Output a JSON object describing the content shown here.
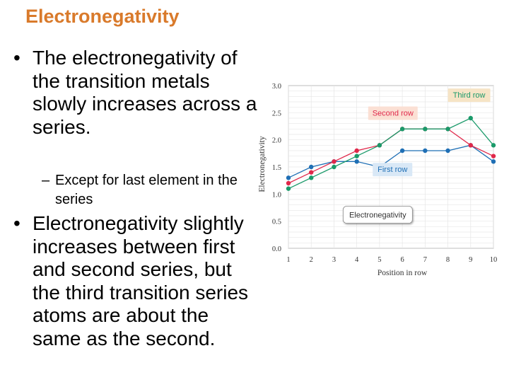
{
  "slide": {
    "title": "Electronegativity",
    "bullets": [
      {
        "text": "The electronegativity of the transition metals slowly increases across a series."
      },
      {
        "text": "Electronegativity slightly increases between first and second series, but the third transition series atoms are about the same as the second."
      }
    ],
    "sub_bullets": [
      {
        "text": "Except for last element in the series"
      }
    ],
    "bullet_glyph": "•",
    "sub_bullet_glyph": "–"
  },
  "chart_data": {
    "type": "line",
    "title": "",
    "xlabel": "Position in row",
    "ylabel": "Electronegativity",
    "x": [
      1,
      2,
      3,
      4,
      5,
      6,
      7,
      8,
      9,
      10
    ],
    "xlim": [
      1,
      10
    ],
    "ylim": [
      0,
      3
    ],
    "yticks": [
      0.0,
      0.5,
      1.0,
      1.5,
      2.0,
      2.5,
      3.0
    ],
    "ytick_labels": [
      "0.0",
      "0.5",
      "1.0",
      "1.5",
      "2.0",
      "2.5",
      "3.0"
    ],
    "grid": true,
    "series": [
      {
        "name": "First row",
        "color": "#1f6fb5",
        "label_bg": "#d9e8f6",
        "values": [
          1.3,
          1.5,
          1.6,
          1.6,
          1.5,
          1.8,
          1.8,
          1.8,
          1.9,
          1.6
        ]
      },
      {
        "name": "Second row",
        "color": "#e0284a",
        "label_bg": "#fbe0d4",
        "values": [
          1.2,
          1.4,
          1.6,
          1.8,
          1.9,
          2.2,
          2.2,
          2.2,
          1.9,
          1.7
        ]
      },
      {
        "name": "Third row",
        "color": "#1a9a6a",
        "label_bg": "#f6e4c6",
        "values": [
          1.1,
          1.3,
          1.5,
          1.7,
          1.9,
          2.2,
          2.2,
          2.2,
          2.4,
          1.9
        ]
      }
    ],
    "annotation": "Electronegativity"
  }
}
